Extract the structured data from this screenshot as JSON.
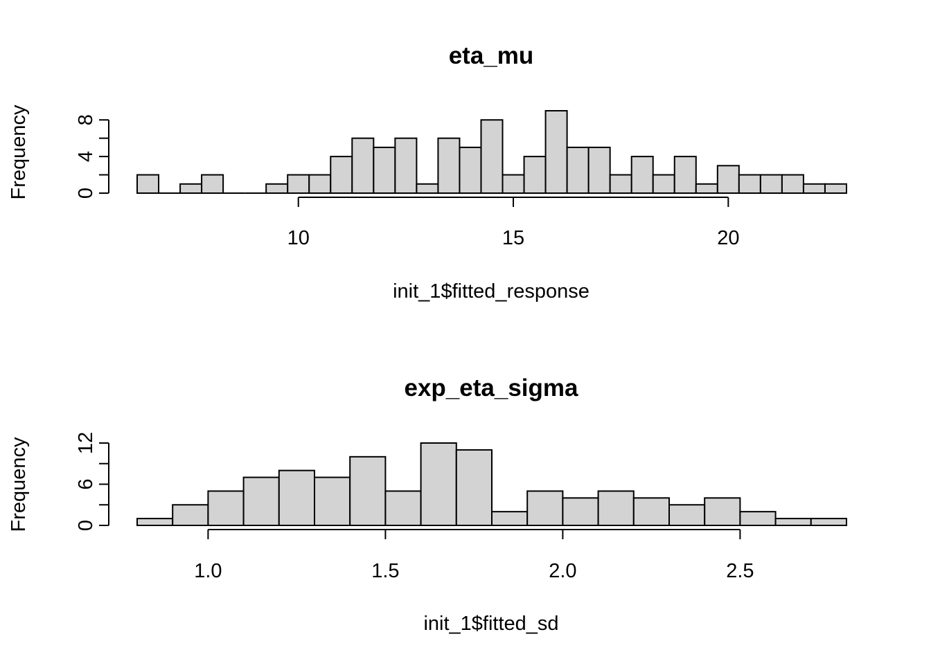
{
  "chart_data": [
    {
      "type": "bar",
      "subtype": "histogram",
      "title": "eta_mu",
      "xlabel": "init_1$fitted_response",
      "ylabel": "Frequency",
      "bin_start": 6.25,
      "bin_width": 0.5,
      "values": [
        2,
        0,
        1,
        2,
        0,
        0,
        1,
        2,
        2,
        4,
        6,
        5,
        6,
        1,
        6,
        5,
        8,
        2,
        4,
        9,
        5,
        5,
        2,
        4,
        2,
        4,
        1,
        3,
        2,
        2,
        2,
        1,
        1
      ],
      "xlim": [
        6.25,
        22.75
      ],
      "ylim": [
        0,
        9
      ],
      "xticks": [
        10,
        15,
        20
      ],
      "xtick_labels": [
        "10",
        "15",
        "20"
      ],
      "yticks": [
        0,
        4,
        8
      ],
      "ytick_labels": [
        "0",
        "4",
        "8"
      ],
      "bar_fill": "#d3d3d3",
      "bar_stroke": "#000000",
      "grid": false,
      "legend": "none"
    },
    {
      "type": "bar",
      "subtype": "histogram",
      "title": "exp_eta_sigma",
      "xlabel": "init_1$fitted_sd",
      "ylabel": "Frequency",
      "bin_start": 0.8,
      "bin_width": 0.1,
      "values": [
        1,
        3,
        5,
        7,
        8,
        7,
        10,
        5,
        12,
        11,
        2,
        5,
        4,
        5,
        4,
        3,
        4,
        2,
        1,
        1
      ],
      "xlim": [
        0.8,
        2.8
      ],
      "ylim": [
        0,
        12
      ],
      "xticks": [
        1.0,
        1.5,
        2.0,
        2.5
      ],
      "xtick_labels": [
        "1.0",
        "1.5",
        "2.0",
        "2.5"
      ],
      "yticks": [
        0,
        6,
        12
      ],
      "ytick_labels": [
        "0",
        "6",
        "12"
      ],
      "bar_fill": "#d3d3d3",
      "bar_stroke": "#000000",
      "grid": false,
      "legend": "none"
    }
  ]
}
